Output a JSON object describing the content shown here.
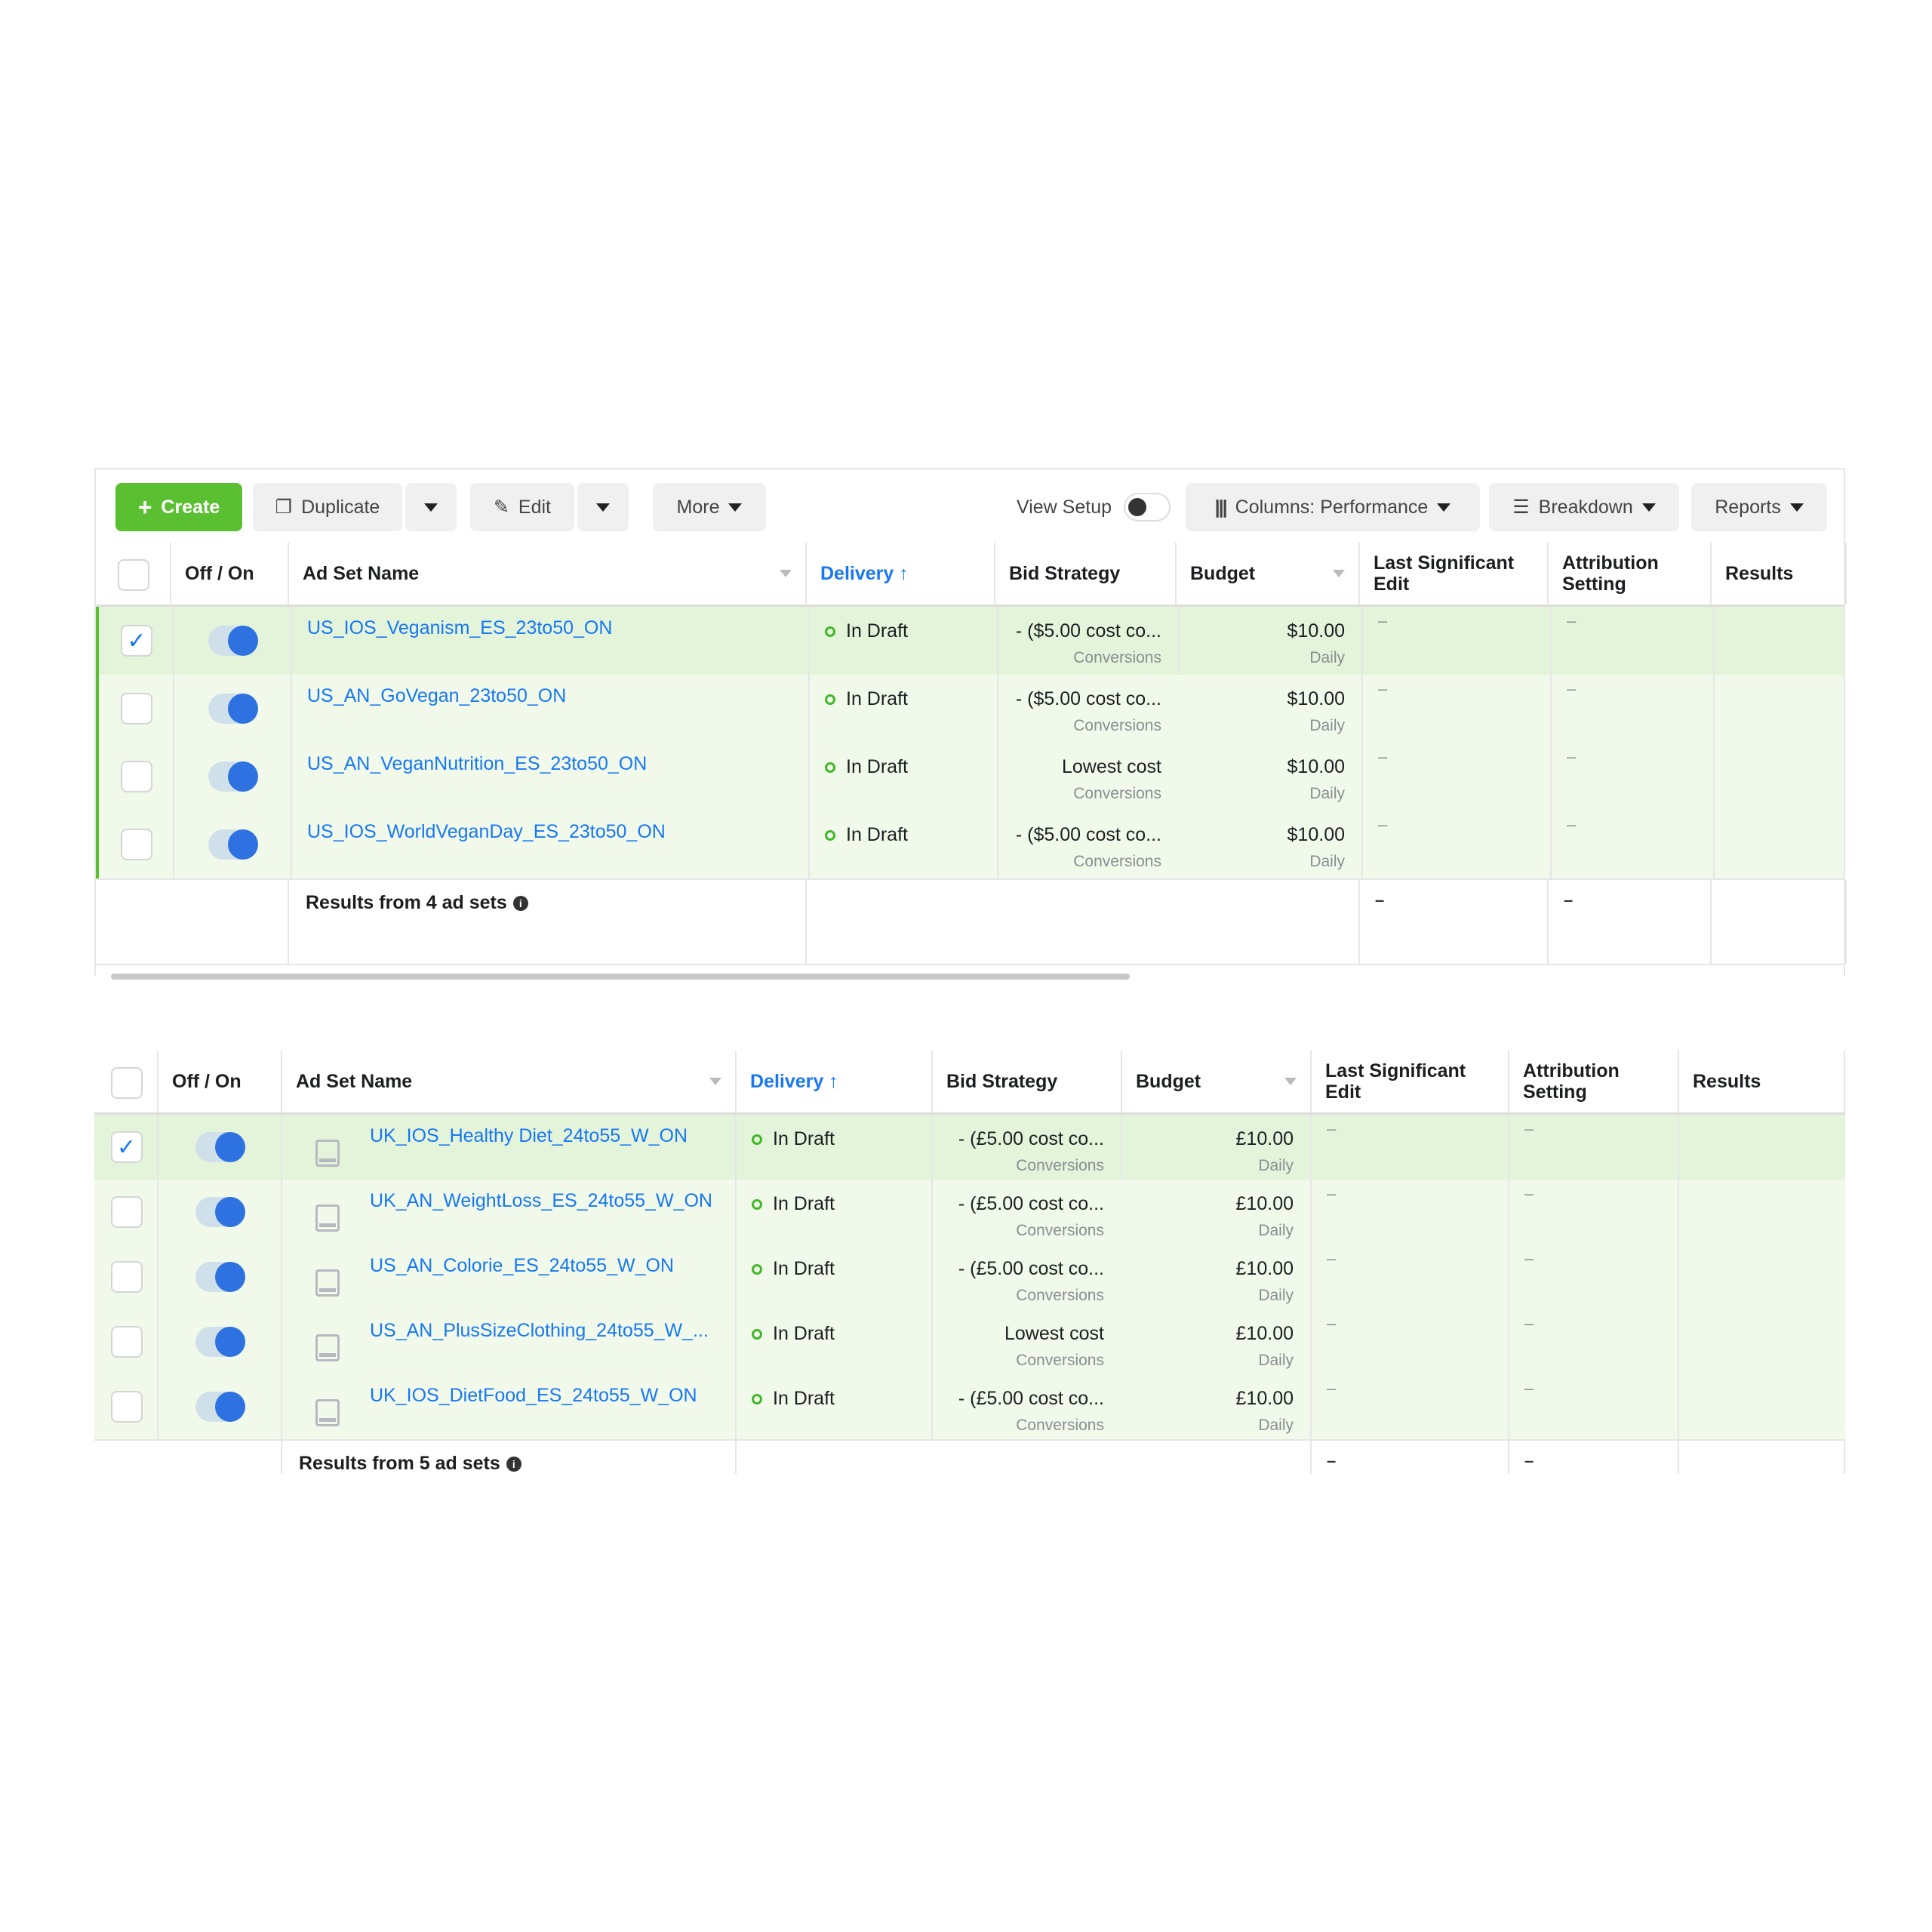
{
  "toolbar": {
    "create": "Create",
    "duplicate": "Duplicate",
    "edit": "Edit",
    "more": "More",
    "view_setup": "View Setup",
    "columns": "Columns: Performance",
    "breakdown": "Breakdown",
    "reports": "Reports"
  },
  "columns": {
    "off_on": "Off / On",
    "name": "Ad Set Name",
    "delivery": "Delivery ↑",
    "bid": "Bid Strategy",
    "budget": "Budget",
    "last_edit": "Last Significant Edit",
    "attribution": "Attribution Setting",
    "results": "Results"
  },
  "colors": {
    "accent": "#1877f2",
    "create": "#5bbf32",
    "selected_row": "#e3f4da",
    "row": "#f1faea",
    "status": "#42b72a"
  },
  "table1": {
    "footer": "Results from 4 ad sets",
    "footer_last_edit": "–",
    "footer_attribution": "–",
    "rows": [
      {
        "name": "US_IOS_Veganism_ES_23to50_ON",
        "status": "In Draft",
        "bid": "- ($5.00 cost co...",
        "bid_sub": "Conversions",
        "budget": "$10.00",
        "budget_sub": "Daily",
        "last_edit": "–",
        "attribution": "–",
        "checked": true,
        "on": true
      },
      {
        "name": "US_AN_GoVegan_23to50_ON",
        "status": "In Draft",
        "bid": "- ($5.00 cost co...",
        "bid_sub": "Conversions",
        "budget": "$10.00",
        "budget_sub": "Daily",
        "last_edit": "–",
        "attribution": "–",
        "checked": false,
        "on": true
      },
      {
        "name": "US_AN_VeganNutrition_ES_23to50_ON",
        "status": "In Draft",
        "bid": "Lowest cost",
        "bid_sub": "Conversions",
        "budget": "$10.00",
        "budget_sub": "Daily",
        "last_edit": "–",
        "attribution": "–",
        "checked": false,
        "on": true
      },
      {
        "name": "US_IOS_WorldVeganDay_ES_23to50_ON",
        "status": "In Draft",
        "bid": "- ($5.00 cost co...",
        "bid_sub": "Conversions",
        "budget": "$10.00",
        "budget_sub": "Daily",
        "last_edit": "–",
        "attribution": "–",
        "checked": false,
        "on": true
      }
    ]
  },
  "table2": {
    "footer": "Results from 5 ad sets",
    "footer_last_edit": "–",
    "footer_attribution": "–",
    "rows": [
      {
        "name": "UK_IOS_Healthy Diet_24to55_W_ON",
        "status": "In Draft",
        "bid": "- (£5.00 cost co...",
        "bid_sub": "Conversions",
        "budget": "£10.00",
        "budget_sub": "Daily",
        "last_edit": "–",
        "attribution": "–",
        "checked": true,
        "on": true
      },
      {
        "name": "UK_AN_WeightLoss_ES_24to55_W_ON",
        "status": "In Draft",
        "bid": "- (£5.00 cost co...",
        "bid_sub": "Conversions",
        "budget": "£10.00",
        "budget_sub": "Daily",
        "last_edit": "–",
        "attribution": "–",
        "checked": false,
        "on": true
      },
      {
        "name": "US_AN_Colorie_ES_24to55_W_ON",
        "status": "In Draft",
        "bid": "- (£5.00 cost co...",
        "bid_sub": "Conversions",
        "budget": "£10.00",
        "budget_sub": "Daily",
        "last_edit": "–",
        "attribution": "–",
        "checked": false,
        "on": true
      },
      {
        "name": "US_AN_PlusSizeClothing_24to55_W_...",
        "status": "In Draft",
        "bid": "Lowest cost",
        "bid_sub": "Conversions",
        "budget": "£10.00",
        "budget_sub": "Daily",
        "last_edit": "–",
        "attribution": "–",
        "checked": false,
        "on": true
      },
      {
        "name": "UK_IOS_DietFood_ES_24to55_W_ON",
        "status": "In Draft",
        "bid": "- (£5.00 cost co...",
        "bid_sub": "Conversions",
        "budget": "£10.00",
        "budget_sub": "Daily",
        "last_edit": "–",
        "attribution": "–",
        "checked": false,
        "on": true
      }
    ]
  }
}
